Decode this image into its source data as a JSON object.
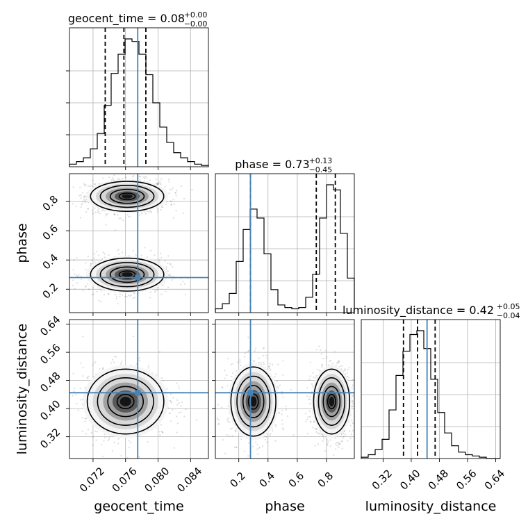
{
  "chart_data": {
    "type": "corner",
    "parameters": [
      "geocent_time",
      "phase",
      "luminosity_distance"
    ],
    "titles": [
      {
        "param": "geocent_time",
        "text": "geocent_time = 0.08",
        "plus": "+0.00",
        "minus": "−0.00"
      },
      {
        "param": "phase",
        "text": "phase = 0.73",
        "plus": "+0.13",
        "minus": "−0.45"
      },
      {
        "param": "luminosity_distance",
        "text": "luminosity_distance = 0.42",
        "plus": "+0.05",
        "minus": "−0.04"
      }
    ],
    "axis_labels": {
      "x": [
        "geocent_time",
        "phase",
        "luminosity_distance"
      ],
      "y": [
        "phase",
        "luminosity_distance"
      ]
    },
    "ranges": {
      "geocent_time": [
        0.0691,
        0.0862
      ],
      "phase": [
        0.04,
        0.99
      ],
      "luminosity_distance": [
        0.258,
        0.653
      ]
    },
    "ticks": {
      "geocent_time": {
        "values": [
          0.072,
          0.076,
          0.08,
          0.084
        ],
        "labels": [
          "0.072",
          "0.076",
          "0.080",
          "0.084"
        ]
      },
      "phase_x": {
        "values": [
          0.2,
          0.4,
          0.6,
          0.8
        ],
        "labels": [
          "0.2",
          "0.4",
          "0.6",
          "0.8"
        ]
      },
      "phase_y": {
        "values": [
          0.2,
          0.4,
          0.6,
          0.8
        ],
        "labels": [
          "0.2",
          "0.4",
          "0.6",
          "0.8"
        ]
      },
      "luminosity_distance": {
        "values": [
          0.32,
          0.4,
          0.48,
          0.56,
          0.64
        ],
        "labels": [
          "0.32",
          "0.40",
          "0.48",
          "0.56",
          "0.64"
        ]
      }
    },
    "truths": {
      "geocent_time": 0.0775,
      "phase": 0.28,
      "luminosity_distance": 0.445
    },
    "quantiles": {
      "geocent_time": [
        0.0735,
        0.0758,
        0.0785
      ],
      "phase": [
        0.28,
        0.73,
        0.86
      ],
      "luminosity_distance": [
        0.378,
        0.418,
        0.468
      ]
    },
    "histograms": {
      "geocent_time": {
        "edges_range": [
          0.0691,
          0.0862
        ],
        "counts": [
          2,
          4,
          7,
          14,
          26,
          48,
          73,
          88,
          100,
          98,
          88,
          72,
          50,
          31,
          19,
          11,
          7,
          4,
          2,
          1
        ]
      },
      "phase": {
        "edges_range": [
          0.04,
          0.99
        ],
        "counts": [
          3,
          7,
          15,
          40,
          65,
          81,
          74,
          46,
          18,
          6,
          4,
          3,
          4,
          12,
          30,
          74,
          100,
          96,
          62,
          27
        ]
      },
      "luminosity_distance": {
        "edges_range": [
          0.258,
          0.653
        ],
        "counts": [
          1,
          3,
          7,
          15,
          38,
          65,
          84,
          97,
          100,
          86,
          62,
          36,
          20,
          10,
          5,
          3,
          2,
          1,
          0,
          0
        ]
      }
    },
    "colors": {
      "truth": "#4682b4",
      "hist": "#000000",
      "grid": "#b0b0b0",
      "scatter": "#444444"
    },
    "grid": true,
    "levels": [
      0.118,
      0.393,
      0.675,
      0.864
    ]
  }
}
